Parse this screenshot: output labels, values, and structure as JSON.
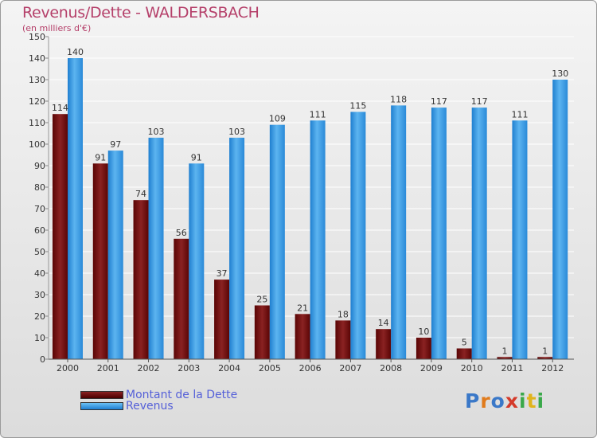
{
  "title": "Revenus/Dette - WALDERSBACH",
  "subtitle": "(en milliers d'€)",
  "logo_text": "Proxiti",
  "colors": {
    "dette": "#7a0d0d",
    "revenus": "#2f8fdc",
    "title": "#b5406a",
    "legend_text": "#5560d8"
  },
  "chart_data": {
    "type": "bar",
    "categories": [
      "2000",
      "2001",
      "2002",
      "2003",
      "2004",
      "2005",
      "2006",
      "2007",
      "2008",
      "2009",
      "2010",
      "2011",
      "2012"
    ],
    "series": [
      {
        "name": "Montant de la Dette",
        "values": [
          114,
          91,
          74,
          56,
          37,
          25,
          21,
          18,
          14,
          10,
          5,
          1,
          1
        ]
      },
      {
        "name": "Revenus",
        "values": [
          140,
          97,
          103,
          91,
          103,
          109,
          111,
          115,
          118,
          117,
          117,
          111,
          130
        ]
      }
    ],
    "ylim": [
      0,
      150
    ],
    "yticks": [
      0,
      10,
      20,
      30,
      40,
      50,
      60,
      70,
      80,
      90,
      100,
      110,
      120,
      130,
      140,
      150
    ],
    "grid": true,
    "legend_position": "bottom-left"
  }
}
